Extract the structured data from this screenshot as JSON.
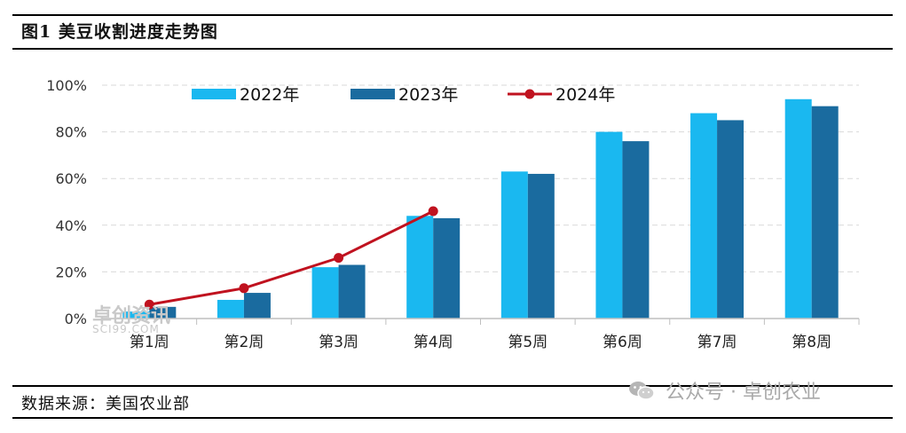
{
  "figure_title": "图1 美豆收割进度走势图",
  "source_note": "数据来源：美国农业部",
  "watermark": {
    "logo_text_cn": "卓创资讯",
    "logo_text_en": "SCI99.COM"
  },
  "account_mark": {
    "icon": "wechat-icon",
    "text": "公众号 · 卓创农业"
  },
  "colors": {
    "s2022": "#1ab8f0",
    "s2023": "#1a6b9f",
    "s2024": "#c0121f",
    "grid": "#d9d9d9",
    "axis": "#bfbfbf"
  },
  "chart_data": {
    "type": "bar",
    "title": "",
    "xlabel": "",
    "ylabel": "",
    "categories": [
      "第1周",
      "第2周",
      "第3周",
      "第4周",
      "第5周",
      "第6周",
      "第7周",
      "第8周"
    ],
    "ylim": [
      0,
      100
    ],
    "y_ticks": [
      "0%",
      "20%",
      "40%",
      "60%",
      "80%",
      "100%"
    ],
    "y_tick_values": [
      0,
      20,
      40,
      60,
      80,
      100
    ],
    "grid": true,
    "legend_position": "top",
    "series": [
      {
        "name": "2022年",
        "kind": "bar",
        "color": "#1ab8f0",
        "values": [
          3,
          8,
          22,
          44,
          63,
          80,
          88,
          94
        ]
      },
      {
        "name": "2023年",
        "kind": "bar",
        "color": "#1a6b9f",
        "values": [
          5,
          11,
          23,
          43,
          62,
          76,
          85,
          91
        ]
      },
      {
        "name": "2024年",
        "kind": "line",
        "color": "#c0121f",
        "values": [
          6,
          13,
          26,
          46,
          null,
          null,
          null,
          null
        ]
      }
    ]
  }
}
